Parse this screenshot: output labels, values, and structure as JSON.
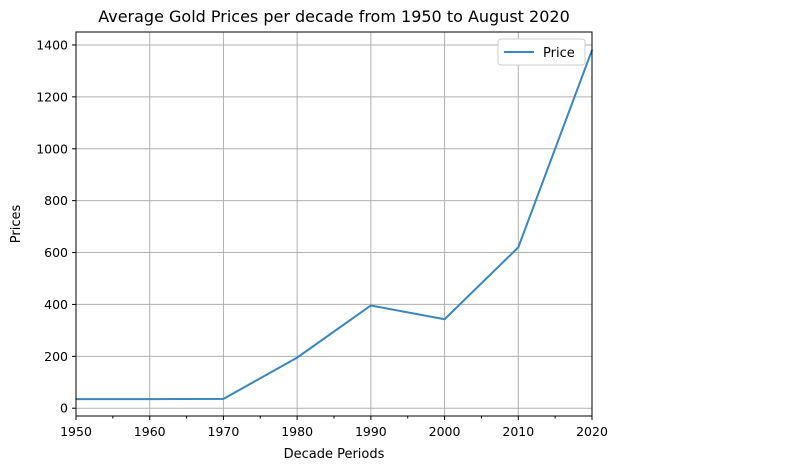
{
  "chart_data": {
    "type": "line",
    "title": "Average Gold Prices per decade from 1950 to August 2020",
    "xlabel": "Decade Periods",
    "ylabel": "Prices",
    "x": [
      1950,
      1960,
      1970,
      1980,
      1990,
      2000,
      2010,
      2020
    ],
    "series": [
      {
        "name": "Price",
        "color": "#3a86bf",
        "values": [
          35,
          35,
          36,
          195,
          396,
          343,
          620,
          1380
        ]
      }
    ],
    "xlim": [
      1950,
      2020
    ],
    "ylim": [
      -30,
      1450
    ],
    "x_ticks": [
      1950,
      1960,
      1970,
      1980,
      1990,
      2000,
      2010,
      2020
    ],
    "y_ticks": [
      0,
      200,
      400,
      600,
      800,
      1000,
      1200,
      1400
    ],
    "grid": true,
    "legend_position": "top-right"
  }
}
